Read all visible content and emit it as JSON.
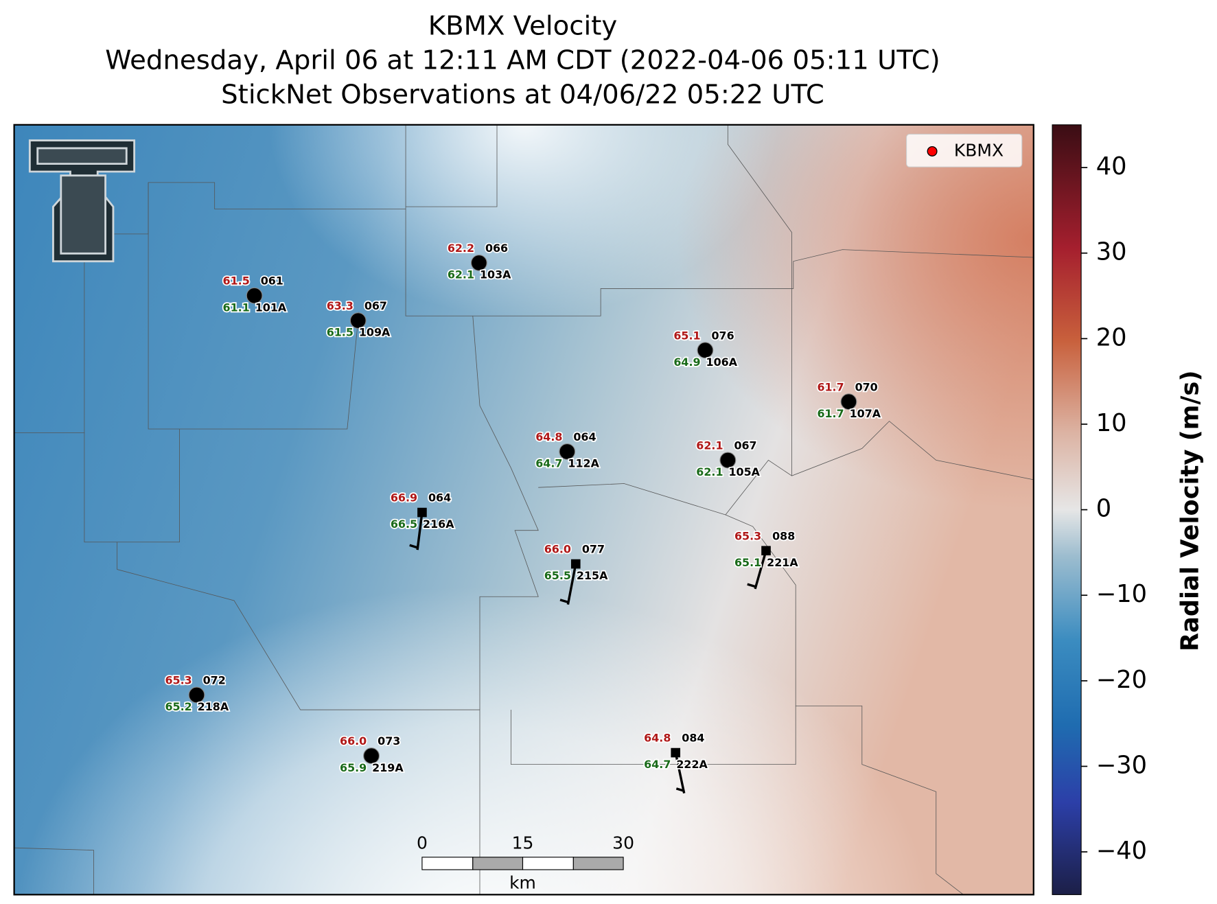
{
  "title": [
    "KBMX Velocity",
    "Wednesday, April 06 at 12:11 AM CDT (2022-04-06 05:11 UTC)",
    "StickNet Observations at 04/06/22 05:22 UTC"
  ],
  "legend": {
    "label": "KBMX",
    "color": "#ff0000"
  },
  "colorbar": {
    "label": "Radial Velocity (m/s)",
    "lim": [
      -45,
      45
    ],
    "ticks": [
      {
        "value": -40,
        "label": "−40"
      },
      {
        "value": -30,
        "label": "−30"
      },
      {
        "value": -20,
        "label": "−20"
      },
      {
        "value": -10,
        "label": "−10"
      },
      0,
      10,
      20,
      30,
      40
    ]
  },
  "scale_bar": {
    "ticks": [
      0,
      15,
      30
    ],
    "unit": "km"
  },
  "stations": [
    {
      "id": "101A",
      "temp": "61.5",
      "dewpoint": "61.1",
      "wind": "061",
      "marker": "circle"
    },
    {
      "id": "109A",
      "temp": "63.3",
      "dewpoint": "61.5",
      "wind": "067",
      "marker": "circle"
    },
    {
      "id": "103A",
      "temp": "62.2",
      "dewpoint": "62.1",
      "wind": "066",
      "marker": "circle"
    },
    {
      "id": "106A",
      "temp": "65.1",
      "dewpoint": "64.9",
      "wind": "076",
      "marker": "circle"
    },
    {
      "id": "107A",
      "temp": "61.7",
      "dewpoint": "61.7",
      "wind": "070",
      "marker": "circle"
    },
    {
      "id": "112A",
      "temp": "64.8",
      "dewpoint": "64.7",
      "wind": "064",
      "marker": "circle"
    },
    {
      "id": "105A",
      "temp": "62.1",
      "dewpoint": "62.1",
      "wind": "067",
      "marker": "circle"
    },
    {
      "id": "216A",
      "temp": "66.9",
      "dewpoint": "66.5",
      "wind": "064",
      "marker": "square"
    },
    {
      "id": "215A",
      "temp": "66.0",
      "dewpoint": "65.5",
      "wind": "077",
      "marker": "square"
    },
    {
      "id": "221A",
      "temp": "65.3",
      "dewpoint": "65.1",
      "wind": "088",
      "marker": "square"
    },
    {
      "id": "218A",
      "temp": "65.3",
      "dewpoint": "65.2",
      "wind": "072",
      "marker": "circle"
    },
    {
      "id": "219A",
      "temp": "66.0",
      "dewpoint": "65.9",
      "wind": "073",
      "marker": "circle"
    },
    {
      "id": "222A",
      "temp": "64.8",
      "dewpoint": "64.7",
      "wind": "084",
      "marker": "square"
    }
  ]
}
